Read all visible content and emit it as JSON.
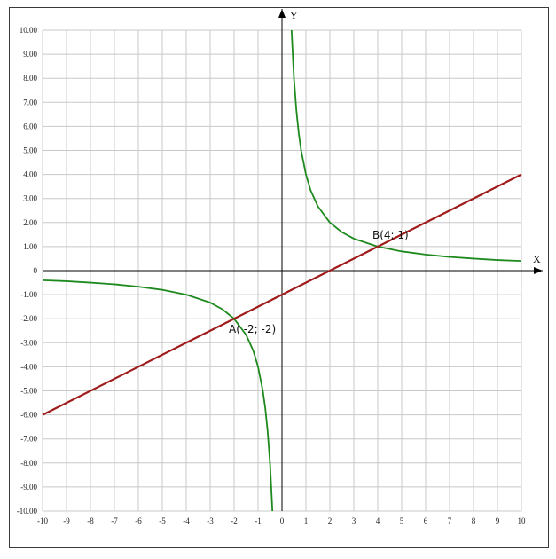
{
  "chart_data": {
    "type": "line",
    "xlabel": "X",
    "ylabel": "Y",
    "xlim": [
      -10,
      10
    ],
    "ylim": [
      -10,
      10
    ],
    "grid": true,
    "x_ticks": [
      -10,
      -9,
      -8,
      -7,
      -6,
      -5,
      -4,
      -3,
      -2,
      -1,
      0,
      1,
      2,
      3,
      4,
      5,
      6,
      7,
      8,
      9,
      10
    ],
    "x_tick_labels": [
      "-10",
      "-9",
      "-8",
      "-7",
      "-6",
      "-5",
      "-4",
      "-3",
      "-2",
      "-1",
      "0",
      "1",
      "2",
      "3",
      "4",
      "5",
      "6",
      "7",
      "8",
      "9",
      "10"
    ],
    "y_ticks": [
      10,
      9,
      8,
      7,
      6,
      5,
      4,
      3,
      2,
      1,
      0,
      -1,
      -2,
      -3,
      -4,
      -5,
      -6,
      -7,
      -8,
      -9,
      -10
    ],
    "y_tick_labels": [
      "10.00",
      "9.00",
      "8.00",
      "7.00",
      "6.00",
      "5.00",
      "4.00",
      "3.00",
      "2.00",
      "1.00",
      "0",
      "-1.00",
      "-2.00",
      "-3.00",
      "-4.00",
      "-5.00",
      "-6.00",
      "-7.00",
      "-8.00",
      "-9.00",
      "-10.00"
    ],
    "series": [
      {
        "color": "#1e8a1e",
        "branches": [
          {
            "x": [
              -10,
              -9,
              -8,
              -7,
              -6,
              -5,
              -4,
              -3,
              -2.5,
              -2,
              -1.5,
              -1.2,
              -1,
              -0.8,
              -0.7,
              -0.6,
              -0.5,
              -0.4
            ],
            "y": [
              -0.4,
              -0.44,
              -0.5,
              -0.57,
              -0.67,
              -0.8,
              -1.0,
              -1.33,
              -1.6,
              -2.0,
              -2.67,
              -3.33,
              -4.0,
              -5.0,
              -5.71,
              -6.67,
              -8.0,
              -10.0
            ]
          },
          {
            "x": [
              0.4,
              0.5,
              0.6,
              0.7,
              0.8,
              1,
              1.2,
              1.5,
              2,
              2.5,
              3,
              4,
              5,
              6,
              7,
              8,
              9,
              10
            ],
            "y": [
              10.0,
              8.0,
              6.67,
              5.71,
              5.0,
              4.0,
              3.33,
              2.67,
              2.0,
              1.6,
              1.33,
              1.0,
              0.8,
              0.67,
              0.57,
              0.5,
              0.44,
              0.4
            ]
          }
        ]
      },
      {
        "color": "#a01c1c",
        "branches": [
          {
            "x": [
              -10,
              10
            ],
            "y": [
              -6,
              4
            ]
          }
        ]
      }
    ],
    "annotations": [
      {
        "text": "A( -2; -2)",
        "x": -2,
        "y": -2
      },
      {
        "text": "B(4; 1)",
        "x": 4,
        "y": 1
      }
    ]
  }
}
